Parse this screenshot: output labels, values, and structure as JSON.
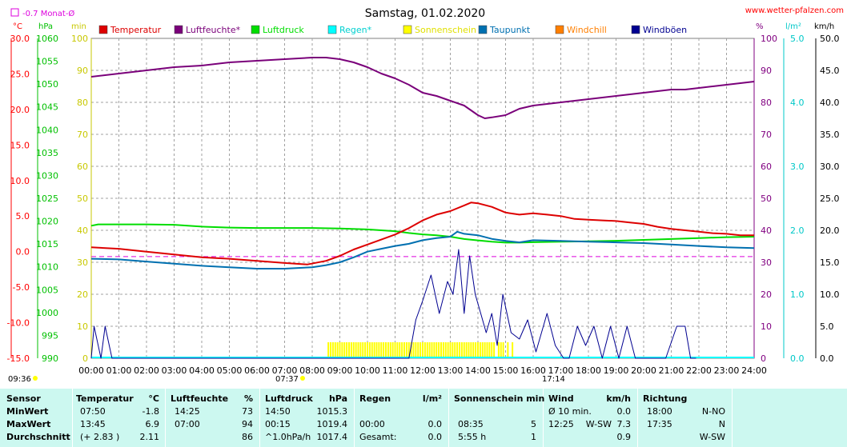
{
  "header": {
    "title": "Samstag, 01.02.2020",
    "website": "www.wetter-pfalzen.com",
    "monthly_avg_label": "-0.7 Monat-Ø",
    "sunrise_time": "07:37",
    "sunset_time": "17:14",
    "time_left": "09:36"
  },
  "units": {
    "temp": "°C",
    "pressure": "hPa",
    "sun": "min",
    "humidity": "%",
    "rain": "l/m²",
    "wind": "km/h"
  },
  "colors": {
    "temperature": "#dd0000",
    "humidity": "#7a007a",
    "pressure": "#00dd00",
    "rain": "#00ffff",
    "sunshine": "#ffff00",
    "dewpoint": "#0070b0",
    "windchill": "#ff7f00",
    "gusts": "#000090",
    "axis_temp": "#ff0000",
    "axis_pressure": "#00c000",
    "axis_sun": "#c8c800",
    "axis_hum": "#800080",
    "axis_rain": "#00c8c8",
    "axis_wind": "#000000",
    "month_avg": "#dd00dd",
    "stats_bg": "#ccf8f0"
  },
  "chart_data": {
    "type": "line",
    "title": "Samstag, 01.02.2020",
    "x_ticks": [
      "00:00",
      "01:00",
      "02:00",
      "03:00",
      "04:00",
      "05:00",
      "06:00",
      "07:00",
      "08:00",
      "09:00",
      "10:00",
      "11:00",
      "12:00",
      "13:00",
      "14:00",
      "15:00",
      "16:00",
      "17:00",
      "18:00",
      "19:00",
      "20:00",
      "21:00",
      "22:00",
      "23:00",
      "24:00"
    ],
    "xlim_hours": [
      0,
      24
    ],
    "axes": {
      "temp": {
        "label": "°C",
        "lim": [
          -15,
          30
        ],
        "ticks": [
          "30.0",
          "25.0",
          "20.0",
          "15.0",
          "10.0",
          "5.0",
          "0.0",
          "-5.0",
          "-10.0",
          "-15.0"
        ]
      },
      "pressure": {
        "label": "hPa",
        "lim": [
          990,
          1060
        ],
        "ticks": [
          "1060",
          "1055",
          "1050",
          "1045",
          "1040",
          "1035",
          "1030",
          "1025",
          "1020",
          "1015",
          "1010",
          "1005",
          "1000",
          "995",
          "990"
        ]
      },
      "sun": {
        "label": "min",
        "lim": [
          0,
          100
        ],
        "ticks": [
          "100",
          "90",
          "80",
          "70",
          "60",
          "50",
          "40",
          "30",
          "20",
          "10",
          "0"
        ]
      },
      "humidity": {
        "label": "%",
        "lim": [
          0,
          100
        ],
        "ticks": [
          "100",
          "90",
          "80",
          "70",
          "60",
          "50",
          "40",
          "30",
          "20",
          "10",
          "0"
        ]
      },
      "rain": {
        "label": "l/m²",
        "lim": [
          0,
          5
        ],
        "ticks": [
          "5.0",
          "4.0",
          "3.0",
          "2.0",
          "1.0",
          "0.0"
        ]
      },
      "wind": {
        "label": "km/h",
        "lim": [
          0,
          50
        ],
        "ticks": [
          "50.0",
          "45.0",
          "40.0",
          "35.0",
          "30.0",
          "25.0",
          "20.0",
          "15.0",
          "10.0",
          "5.0",
          "0.0"
        ]
      }
    },
    "legend": [
      {
        "name": "Temperatur",
        "color": "#dd0000"
      },
      {
        "name": "Luftfeuchte*",
        "color": "#7a007a"
      },
      {
        "name": "Luftdruck",
        "color": "#00dd00"
      },
      {
        "name": "Regen*",
        "color": "#00ffff"
      },
      {
        "name": "Sonnenschein",
        "color": "#ffff00"
      },
      {
        "name": "Taupunkt",
        "color": "#0070b0"
      },
      {
        "name": "Windchill",
        "color": "#ff7f00"
      },
      {
        "name": "Windböen",
        "color": "#000090"
      }
    ],
    "month_avg_temp": -0.7,
    "series": [
      {
        "name": "Temperatur",
        "axis": "temp",
        "x": [
          0,
          1,
          2,
          3,
          4,
          5,
          6,
          7,
          7.83,
          8.5,
          9,
          9.5,
          10,
          10.5,
          11,
          11.5,
          12,
          12.5,
          13,
          13.5,
          13.75,
          14,
          14.5,
          15,
          15.5,
          16,
          16.5,
          17,
          17.5,
          18,
          18.5,
          19,
          19.5,
          20,
          20.5,
          21,
          21.5,
          22,
          22.5,
          23,
          23.5,
          24
        ],
        "y": [
          0.6,
          0.4,
          0,
          -0.4,
          -0.8,
          -1.0,
          -1.3,
          -1.6,
          -1.8,
          -1.3,
          -0.6,
          0.3,
          1.0,
          1.7,
          2.4,
          3.3,
          4.4,
          5.2,
          5.7,
          6.5,
          6.9,
          6.8,
          6.3,
          5.5,
          5.2,
          5.4,
          5.2,
          5.0,
          4.6,
          4.5,
          4.4,
          4.3,
          4.1,
          3.9,
          3.5,
          3.2,
          3.0,
          2.8,
          2.6,
          2.5,
          2.3,
          2.3
        ]
      },
      {
        "name": "Luftfeuchte*",
        "axis": "humidity",
        "x": [
          0,
          1,
          2,
          3,
          4,
          5,
          6,
          7,
          8,
          8.5,
          9,
          9.5,
          10,
          10.5,
          11,
          11.5,
          12,
          12.5,
          13,
          13.5,
          14,
          14.25,
          14.5,
          15,
          15.5,
          16,
          16.5,
          17,
          17.5,
          18,
          18.5,
          19,
          19.5,
          20,
          20.5,
          21,
          21.5,
          22,
          22.5,
          23,
          23.5,
          24
        ],
        "y": [
          88,
          89,
          90,
          91,
          91.5,
          92.5,
          93,
          93.5,
          94,
          94,
          93.5,
          92.5,
          91,
          89,
          87.5,
          85.5,
          83,
          82,
          80.5,
          79,
          76,
          75,
          75.3,
          76,
          78,
          79,
          79.5,
          80,
          80.5,
          81,
          81.5,
          82,
          82.5,
          83,
          83.5,
          84,
          84,
          84.5,
          85,
          85.5,
          86,
          86.5
        ]
      },
      {
        "name": "Luftdruck",
        "axis": "pressure",
        "x": [
          0,
          0.25,
          1,
          2,
          3,
          4,
          5,
          6,
          7,
          8,
          9,
          10,
          11,
          11.5,
          12,
          12.5,
          13,
          13.5,
          14,
          14.5,
          15,
          15.5,
          16,
          17,
          18,
          19,
          20,
          21,
          22,
          23,
          24
        ],
        "y": [
          1019.0,
          1019.3,
          1019.3,
          1019.3,
          1019.2,
          1018.8,
          1018.6,
          1018.5,
          1018.5,
          1018.5,
          1018.4,
          1018.2,
          1017.8,
          1017.4,
          1017.1,
          1016.9,
          1016.6,
          1016.1,
          1015.8,
          1015.5,
          1015.3,
          1015.3,
          1015.4,
          1015.5,
          1015.6,
          1015.7,
          1015.9,
          1016.1,
          1016.3,
          1016.5,
          1016.6
        ]
      },
      {
        "name": "Taupunkt",
        "axis": "temp",
        "x": [
          0,
          1,
          2,
          3,
          4,
          5,
          6,
          7,
          8,
          8.5,
          9,
          9.5,
          10,
          10.5,
          11,
          11.5,
          12,
          12.5,
          13,
          13.25,
          13.5,
          14,
          14.5,
          15,
          15.5,
          16,
          17,
          18,
          19,
          20,
          21,
          22,
          23,
          24
        ],
        "y": [
          -1.0,
          -1.1,
          -1.4,
          -1.7,
          -2.0,
          -2.2,
          -2.4,
          -2.4,
          -2.2,
          -1.9,
          -1.5,
          -0.8,
          0,
          0.4,
          0.8,
          1.1,
          1.6,
          1.9,
          2.1,
          2.8,
          2.5,
          2.3,
          1.8,
          1.5,
          1.3,
          1.6,
          1.5,
          1.4,
          1.3,
          1.2,
          1.0,
          0.8,
          0.6,
          0.5
        ]
      },
      {
        "name": "Windböen",
        "axis": "wind",
        "x": [
          0,
          0.1,
          0.35,
          0.5,
          0.75,
          1.25,
          11.5,
          11.75,
          12,
          12.3,
          12.6,
          12.9,
          13.1,
          13.3,
          13.5,
          13.7,
          13.9,
          14.1,
          14.3,
          14.5,
          14.7,
          14.9,
          15.2,
          15.5,
          15.8,
          16.1,
          16.5,
          16.8,
          17.1,
          17.3,
          17.6,
          17.9,
          18.2,
          18.5,
          18.8,
          19.1,
          19.4,
          19.7,
          20.0,
          20.5,
          20.8,
          21.2,
          21.5,
          21.7,
          21.9
        ],
        "y": [
          0,
          5,
          0,
          5,
          0,
          0,
          0,
          6,
          9,
          13,
          7,
          12,
          10,
          17,
          7,
          16,
          10,
          7,
          4,
          7,
          2,
          10,
          4,
          3,
          6,
          1,
          7,
          2,
          0,
          0,
          5,
          2,
          5,
          0,
          5,
          0,
          5,
          0,
          0,
          0,
          0,
          5,
          5,
          0,
          0
        ]
      }
    ],
    "sunshine": {
      "axis": "sun",
      "start": "08:35",
      "end": "15:20",
      "level": 5
    }
  },
  "stats": {
    "headers": {
      "sensor": "Sensor",
      "temperature": "Temperatur",
      "temp_unit": "°C",
      "humidity": "Luftfeuchte",
      "hum_unit": "%",
      "pressure": "Luftdruck",
      "press_unit": "hPa",
      "rain": "Regen",
      "rain_unit": "l/m²",
      "sun": "Sonnenschein min",
      "wind": "Wind",
      "wind_unit": "km/h",
      "direction": "Richtung"
    },
    "rows": [
      {
        "label": "MinWert",
        "temp_time": "07:50",
        "temp_val": "-1.8",
        "hum_time": "14:25",
        "hum_val": "73",
        "press_time": "14:50",
        "press_val": "1015.3",
        "rain_time": "",
        "rain_val": "",
        "sun_time": "",
        "sun_val": "",
        "wind_time": "Ø 10 min.",
        "wind_dir": "",
        "wind_val": "0.0",
        "dir_time": "18:00",
        "dir_val": "N-NO"
      },
      {
        "label": "MaxWert",
        "temp_time": "13:45",
        "temp_val": "6.9",
        "hum_time": "07:00",
        "hum_val": "94",
        "press_time": "00:15",
        "press_val": "1019.4",
        "rain_time": "00:00",
        "rain_val": "0.0",
        "sun_time": "08:35",
        "sun_val": "5",
        "wind_time": "12:25",
        "wind_dir": "W-SW",
        "wind_val": "7.3",
        "dir_time": "17:35",
        "dir_val": "N"
      },
      {
        "label": "Durchschnitt",
        "temp_time": "(+ 2.83 )",
        "temp_val": "2.11",
        "hum_time": "",
        "hum_val": "86",
        "press_time": "^1.0hPa/h",
        "press_val": "1017.4",
        "rain_time": "Gesamt:",
        "rain_val": "0.0",
        "sun_time": "5:55 h",
        "sun_val": "1",
        "wind_time": "",
        "wind_dir": "",
        "wind_val": "0.9",
        "dir_time": "",
        "dir_val": "W-SW"
      }
    ]
  }
}
